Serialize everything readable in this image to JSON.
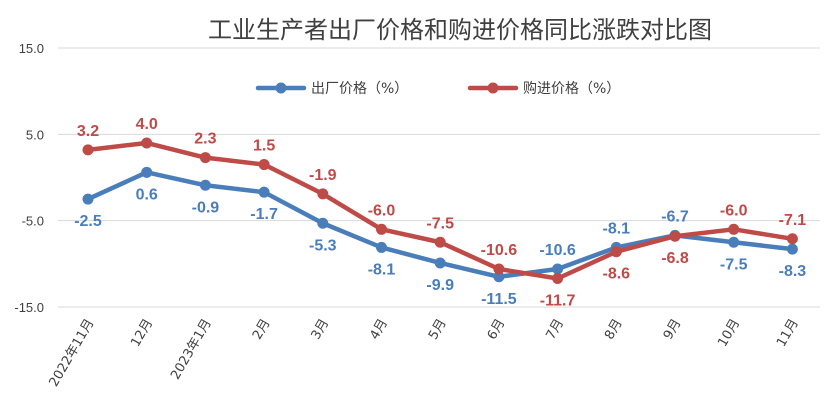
{
  "chart_data": {
    "type": "line",
    "title": "工业生产者出厂价格和购进价格同比涨跌对比图",
    "categories": [
      "2022年11月",
      "12月",
      "2023年1月",
      "2月",
      "3月",
      "4月",
      "5月",
      "6月",
      "7月",
      "8月",
      "9月",
      "10月",
      "11月"
    ],
    "series": [
      {
        "name": "出厂价格（%）",
        "color": "#4a7ebb",
        "values": [
          -2.5,
          0.6,
          -0.9,
          -1.7,
          -5.3,
          -8.1,
          -9.9,
          -11.5,
          -10.6,
          -8.1,
          -6.7,
          -7.5,
          -8.3
        ],
        "labels": [
          "-2.5",
          "0.6",
          "-0.9",
          "-1.7",
          "-5.3",
          "-8.1",
          "-9.9",
          "-11.5",
          "-10.6",
          "-8.1",
          "-6.7",
          "-7.5",
          "-8.3"
        ]
      },
      {
        "name": "购进价格（%）",
        "color": "#be4b48",
        "values": [
          3.2,
          4.0,
          2.3,
          1.5,
          -1.9,
          -6.0,
          -7.5,
          -10.6,
          -11.7,
          -8.6,
          -6.8,
          -6.0,
          -7.1
        ],
        "labels": [
          "3.2",
          "4.0",
          "2.3",
          "1.5",
          "-1.9",
          "-6.0",
          "-7.5",
          "-10.6",
          "-11.7",
          "-8.6",
          "-6.8",
          "-6.0",
          "-7.1"
        ]
      }
    ],
    "yticks": [
      "15.0",
      "5.0",
      "-5.0",
      "-15.0"
    ],
    "ylim": [
      -15,
      15
    ],
    "xlabel": "",
    "ylabel": "",
    "grid": true,
    "legend": "top-center"
  }
}
